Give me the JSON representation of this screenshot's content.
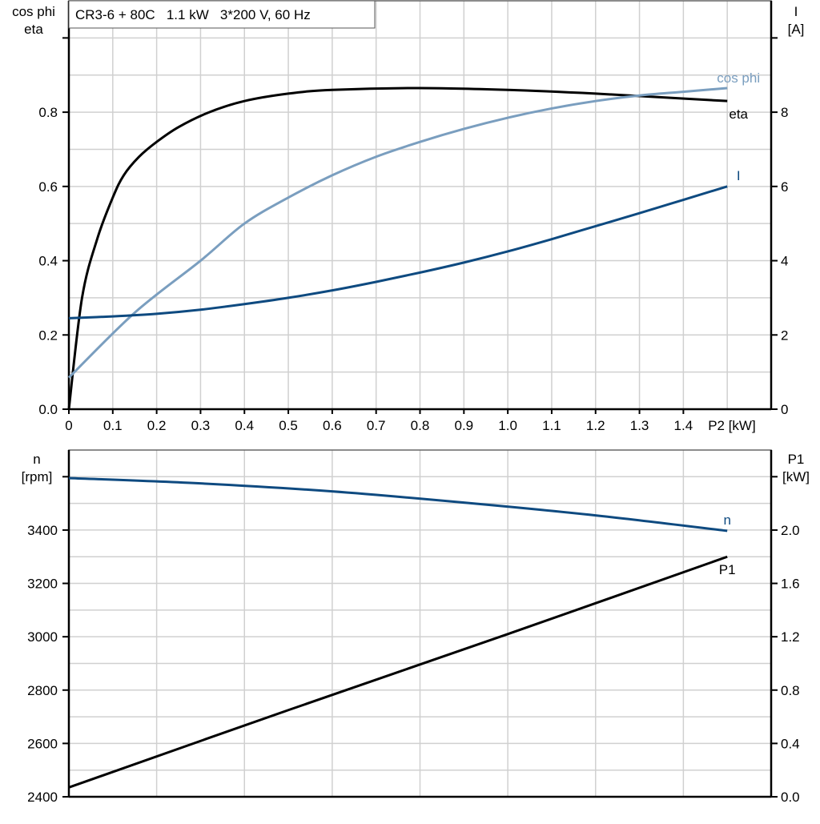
{
  "chart_data": [
    {
      "type": "line",
      "title": "CR3-6 + 80C   1.1 kW   3*200 V, 60 Hz",
      "xlabel": "P2 [kW]",
      "x_tick_labels": [
        "0",
        "0.1",
        "0.2",
        "0.3",
        "0.4",
        "0.5",
        "0.6",
        "0.7",
        "0.8",
        "0.9",
        "1.0",
        "1.1",
        "1.2",
        "1.3",
        "1.4"
      ],
      "xlim": [
        0,
        1.6
      ],
      "ylabel_left": [
        "cos phi",
        "eta"
      ],
      "ylim_left": [
        0,
        1.1
      ],
      "y_ticks_left": [
        "0.0",
        "0.2",
        "0.4",
        "0.6",
        "0.8"
      ],
      "ylabel_right": [
        "I",
        "[A]"
      ],
      "ylim_right": [
        0,
        11
      ],
      "y_ticks_right": [
        "0",
        "2",
        "4",
        "6",
        "8"
      ],
      "grid": true,
      "series": [
        {
          "name": "eta",
          "axis": "left",
          "color": "#000000",
          "x": [
            0,
            0.03,
            0.065,
            0.1,
            0.125,
            0.16,
            0.2,
            0.25,
            0.32,
            0.4,
            0.5,
            0.6,
            0.8,
            1.0,
            1.2,
            1.35,
            1.5
          ],
          "y": [
            0,
            0.3,
            0.46,
            0.57,
            0.63,
            0.68,
            0.72,
            0.76,
            0.8,
            0.83,
            0.85,
            0.86,
            0.865,
            0.86,
            0.85,
            0.84,
            0.83
          ]
        },
        {
          "name": "cos phi",
          "axis": "left",
          "color": "#7a9ebf",
          "x": [
            0,
            0.15,
            0.3,
            0.4,
            0.5,
            0.6,
            0.7,
            0.8,
            0.9,
            1.0,
            1.1,
            1.2,
            1.3,
            1.4,
            1.5
          ],
          "y": [
            0.085,
            0.26,
            0.4,
            0.5,
            0.57,
            0.63,
            0.68,
            0.72,
            0.755,
            0.785,
            0.81,
            0.83,
            0.845,
            0.855,
            0.865
          ]
        },
        {
          "name": "I",
          "axis": "right",
          "color": "#0e4a80",
          "x": [
            0,
            0.1,
            0.2,
            0.3,
            0.4,
            0.5,
            0.6,
            0.7,
            0.8,
            0.9,
            1.0,
            1.1,
            1.2,
            1.3,
            1.4,
            1.5
          ],
          "y": [
            2.45,
            2.5,
            2.57,
            2.68,
            2.83,
            3.0,
            3.2,
            3.43,
            3.68,
            3.95,
            4.25,
            4.58,
            4.93,
            5.28,
            5.64,
            6.0
          ]
        }
      ]
    },
    {
      "type": "line",
      "xlim": [
        0,
        1.6
      ],
      "ylabel_left": [
        "n",
        "[rpm]"
      ],
      "ylim_left": [
        2400,
        3700
      ],
      "y_ticks_left": [
        "2400",
        "2600",
        "2800",
        "3000",
        "3200",
        "3400"
      ],
      "ylabel_right": [
        "P1",
        "[kW]"
      ],
      "ylim_right": [
        0,
        2.6
      ],
      "y_ticks_right": [
        "0.0",
        "0.4",
        "0.8",
        "1.2",
        "1.6",
        "2.0"
      ],
      "grid": true,
      "series": [
        {
          "name": "n",
          "axis": "left",
          "color": "#0e4a80",
          "x": [
            0,
            0.3,
            0.6,
            0.9,
            1.2,
            1.5
          ],
          "y": [
            3595,
            3575,
            3545,
            3503,
            3455,
            3397
          ]
        },
        {
          "name": "P1",
          "axis": "right",
          "color": "#000000",
          "x": [
            0,
            0.5,
            1.0,
            1.5
          ],
          "y": [
            0.07,
            0.65,
            1.22,
            1.8
          ]
        }
      ]
    }
  ]
}
